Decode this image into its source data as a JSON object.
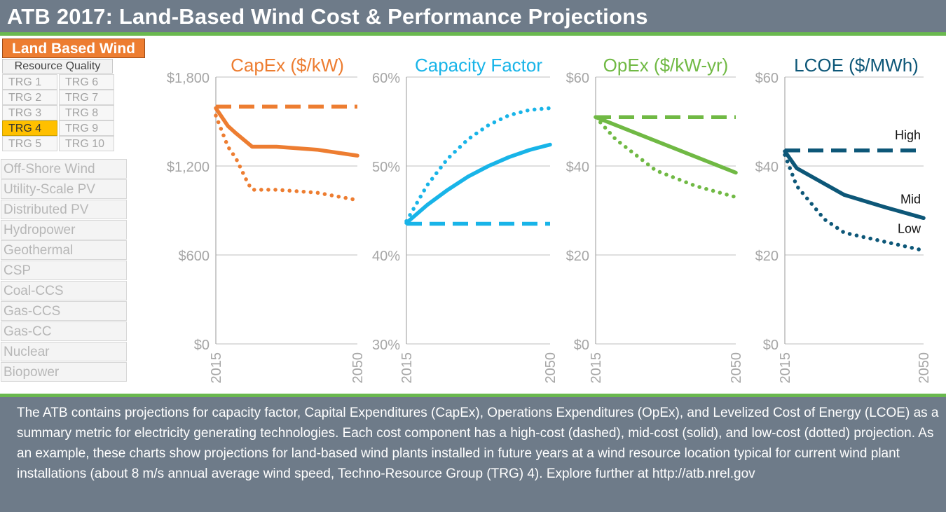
{
  "header": {
    "title": "ATB 2017: Land-Based Wind Cost & Performance Projections"
  },
  "sidebar": {
    "selected_technology": "Land Based Wind",
    "resource_quality_title": "Resource Quality",
    "trgs": [
      "TRG 1",
      "TRG 2",
      "TRG 3",
      "TRG 4",
      "TRG 5",
      "TRG 6",
      "TRG 7",
      "TRG 8",
      "TRG 9",
      "TRG 10"
    ],
    "selected_trg": "TRG 4",
    "technologies": [
      "Off-Shore Wind",
      "Utility-Scale PV",
      "Distributed PV",
      "Hydropower",
      "Geothermal",
      "CSP",
      "Coal-CCS",
      "Gas-CCS",
      "Gas-CC",
      "Nuclear",
      "Biopower"
    ]
  },
  "colors": {
    "header_bg": "#6e7b89",
    "accent_green": "#6ab94f",
    "capex": "#ed7d31",
    "cf": "#18b4e8",
    "opex": "#70b944",
    "lcoe": "#0d5778",
    "trg_selected": "#ffc000",
    "axis_label": "#a6a6a6"
  },
  "chart_data": [
    {
      "type": "line",
      "title": "CapEx ($/kW)",
      "xlabel": "",
      "ylabel": "",
      "x_ticks": [
        "2015",
        "2050"
      ],
      "xlim": [
        2015,
        2050
      ],
      "ylim": [
        0,
        1800
      ],
      "y_ticks": [
        0,
        600,
        1200,
        1800
      ],
      "y_tick_labels": [
        "$0",
        "$600",
        "$1,200",
        "$1,800"
      ],
      "series": [
        {
          "name": "High",
          "style": "dashed",
          "x": [
            2015,
            2050
          ],
          "values": [
            1600,
            1600
          ]
        },
        {
          "name": "Mid",
          "style": "solid",
          "x": [
            2015,
            2018,
            2020,
            2024,
            2030,
            2040,
            2050
          ],
          "values": [
            1590,
            1470,
            1420,
            1330,
            1330,
            1310,
            1270
          ]
        },
        {
          "name": "Low",
          "style": "dotted",
          "x": [
            2015,
            2018,
            2020,
            2023,
            2024,
            2030,
            2040,
            2050
          ],
          "values": [
            1540,
            1330,
            1250,
            1080,
            1040,
            1040,
            1020,
            970
          ]
        }
      ]
    },
    {
      "type": "line",
      "title": "Capacity Factor",
      "xlabel": "",
      "ylabel": "",
      "x_ticks": [
        "2015",
        "2050"
      ],
      "xlim": [
        2015,
        2050
      ],
      "ylim": [
        30,
        60
      ],
      "y_ticks": [
        30,
        40,
        50,
        60
      ],
      "y_tick_labels": [
        "30%",
        "40%",
        "50%",
        "60%"
      ],
      "series": [
        {
          "name": "High",
          "style": "dashed",
          "x": [
            2015,
            2050
          ],
          "values": [
            43.5,
            43.5
          ]
        },
        {
          "name": "Mid",
          "style": "solid",
          "x": [
            2015,
            2020,
            2025,
            2030,
            2035,
            2040,
            2045,
            2050
          ],
          "values": [
            43.6,
            45.6,
            47.3,
            48.8,
            50.0,
            51.0,
            51.8,
            52.4
          ]
        },
        {
          "name": "Low",
          "style": "dotted",
          "x": [
            2015,
            2020,
            2025,
            2030,
            2035,
            2040,
            2045,
            2050
          ],
          "values": [
            43.8,
            47.8,
            50.8,
            53.0,
            54.6,
            55.7,
            56.3,
            56.5
          ]
        }
      ]
    },
    {
      "type": "line",
      "title": "OpEx ($/kW-yr)",
      "xlabel": "",
      "ylabel": "",
      "x_ticks": [
        "2015",
        "2050"
      ],
      "xlim": [
        2015,
        2050
      ],
      "ylim": [
        0,
        60
      ],
      "y_ticks": [
        0,
        20,
        40,
        60
      ],
      "y_tick_labels": [
        "$0",
        "$20",
        "$40",
        "$60"
      ],
      "series": [
        {
          "name": "High",
          "style": "dashed",
          "x": [
            2015,
            2050
          ],
          "values": [
            51,
            51
          ]
        },
        {
          "name": "Mid",
          "style": "solid",
          "x": [
            2015,
            2050
          ],
          "values": [
            51,
            38.5
          ]
        },
        {
          "name": "Low",
          "style": "dotted",
          "x": [
            2015,
            2020,
            2030,
            2040,
            2050
          ],
          "values": [
            51,
            46,
            39,
            35.5,
            33
          ]
        }
      ]
    },
    {
      "type": "line",
      "title": "LCOE ($/MWh)",
      "xlabel": "",
      "ylabel": "",
      "x_ticks": [
        "2015",
        "2050"
      ],
      "xlim": [
        2015,
        2050
      ],
      "ylim": [
        0,
        60
      ],
      "y_ticks": [
        0,
        20,
        40,
        60
      ],
      "y_tick_labels": [
        "$0",
        "$20",
        "$40",
        "$60"
      ],
      "series": [
        {
          "name": "High",
          "label": "High",
          "style": "dashed",
          "x": [
            2015,
            2050
          ],
          "values": [
            43.5,
            43.5
          ]
        },
        {
          "name": "Mid",
          "label": "Mid",
          "style": "solid",
          "x": [
            2015,
            2018,
            2030,
            2040,
            2050
          ],
          "values": [
            43.3,
            39.5,
            33.5,
            30.8,
            28.3
          ]
        },
        {
          "name": "Low",
          "label": "Low",
          "style": "dotted",
          "x": [
            2015,
            2018,
            2025,
            2030,
            2040,
            2050
          ],
          "values": [
            42.5,
            35.5,
            28,
            25,
            23,
            21
          ]
        }
      ]
    }
  ],
  "description": "The ATB contains projections for capacity factor, Capital Expenditures (CapEx), Operations Expenditures (OpEx), and Levelized Cost of Energy (LCOE) as a summary metric for electricity generating technologies. Each cost component has a high-cost (dashed), mid-cost (solid), and low-cost (dotted) projection. As an example, these charts show projections for land-based wind plants installed in future years at a wind resource location typical for current wind plant installations (about 8 m/s annual average wind speed, Techno-Resource Group (TRG) 4). Explore further at http://atb.nrel.gov"
}
